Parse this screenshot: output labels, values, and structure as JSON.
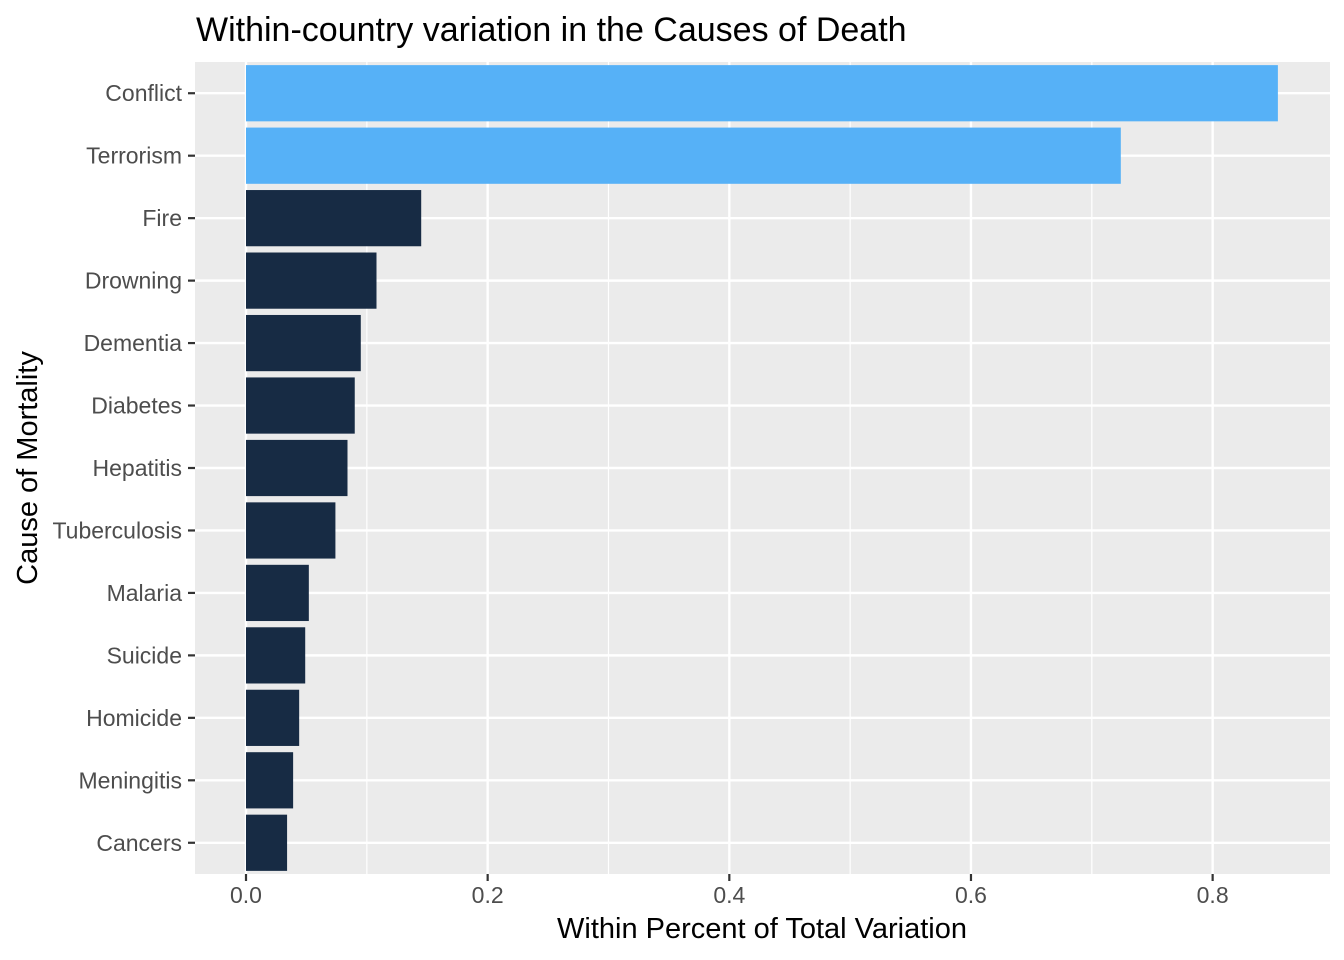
{
  "chart_data": {
    "type": "bar",
    "orientation": "horizontal",
    "title": "Within-country variation in the Causes of Death",
    "xlabel": "Within Percent of Total Variation",
    "ylabel": "Cause of Mortality",
    "xlim": [
      0,
      0.88
    ],
    "xticks": [
      0.0,
      0.2,
      0.4,
      0.6,
      0.8
    ],
    "xtick_labels": [
      "0.0",
      "0.2",
      "0.4",
      "0.6",
      "0.8"
    ],
    "grid": true,
    "legend": "none",
    "categories": [
      "Conflict",
      "Terrorism",
      "Fire",
      "Drowning",
      "Dementia",
      "Diabetes",
      "Hepatitis",
      "Tuberculosis",
      "Malaria",
      "Suicide",
      "Homicide",
      "Meningitis",
      "Cancers"
    ],
    "values": [
      0.854,
      0.724,
      0.145,
      0.108,
      0.095,
      0.09,
      0.084,
      0.074,
      0.052,
      0.049,
      0.044,
      0.039,
      0.034
    ],
    "highlighted": [
      true,
      true,
      false,
      false,
      false,
      false,
      false,
      false,
      false,
      false,
      false,
      false,
      false
    ],
    "colors": {
      "highlight": "#56b1f7",
      "default": "#172b44",
      "panel_background": "#ebebeb",
      "grid": "#ffffff",
      "tick": "#333333"
    }
  }
}
